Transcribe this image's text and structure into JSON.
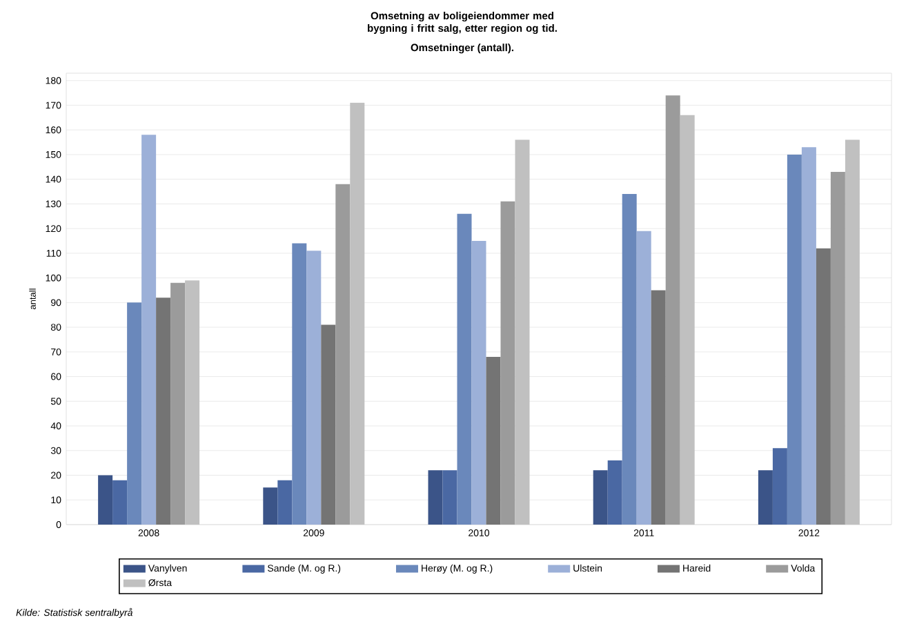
{
  "chart_data": {
    "type": "bar",
    "title": "Omsetning av boligeiendommer med bygning i fritt salg, etter region og tid.",
    "subtitle": "Omsetninger (antall).",
    "ylabel": "antall",
    "categories": [
      "2008",
      "2009",
      "2010",
      "2011",
      "2012"
    ],
    "series": [
      {
        "name": "Vanylven",
        "color": "#3b5488",
        "values": [
          20,
          15,
          22,
          22,
          22
        ]
      },
      {
        "name": "Sande (M. og R.)",
        "color": "#4a68a3",
        "values": [
          18,
          18,
          22,
          26,
          31
        ]
      },
      {
        "name": "Herøy (M. og R.)",
        "color": "#6a88bb",
        "values": [
          90,
          114,
          126,
          134,
          150
        ]
      },
      {
        "name": "Ulstein",
        "color": "#9cb0d8",
        "values": [
          158,
          111,
          115,
          119,
          153
        ]
      },
      {
        "name": "Hareid",
        "color": "#747474",
        "values": [
          92,
          81,
          68,
          95,
          112
        ]
      },
      {
        "name": "Volda",
        "color": "#9b9b9b",
        "values": [
          98,
          138,
          131,
          174,
          143
        ]
      },
      {
        "name": "Ørsta",
        "color": "#c0c0c0",
        "values": [
          99,
          171,
          156,
          166,
          156
        ]
      }
    ],
    "ylim": [
      0,
      183
    ],
    "yticks": [
      0,
      10,
      20,
      30,
      40,
      50,
      60,
      70,
      80,
      90,
      100,
      110,
      120,
      130,
      140,
      150,
      160,
      170,
      180
    ],
    "grid": "y",
    "legend": "bottom",
    "annotations": [
      "Kilde: Statistisk sentralbyrå"
    ]
  }
}
